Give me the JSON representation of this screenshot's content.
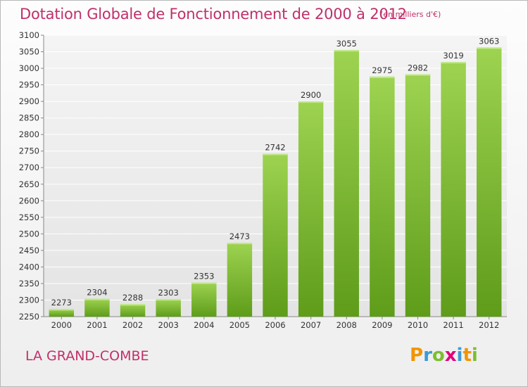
{
  "chart_data": {
    "type": "bar",
    "title": "Dotation Globale de Fonctionnement de 2000 à 2012",
    "subtitle": "(en milliers d'€)",
    "categories": [
      "2000",
      "2001",
      "2002",
      "2003",
      "2004",
      "2005",
      "2006",
      "2007",
      "2008",
      "2009",
      "2010",
      "2011",
      "2012"
    ],
    "values": [
      2273,
      2304,
      2288,
      2303,
      2353,
      2473,
      2742,
      2900,
      3055,
      2975,
      2982,
      3019,
      3063
    ],
    "ylim": [
      2250,
      3100
    ],
    "yticks": [
      2250,
      2300,
      2350,
      2400,
      2450,
      2500,
      2550,
      2600,
      2650,
      2700,
      2750,
      2800,
      2850,
      2900,
      2950,
      3000,
      3050,
      3100
    ],
    "grid": true,
    "bar_color": "#7cbf2e"
  },
  "footer": {
    "commune": "LA GRAND-COMBE",
    "logo_text": "Proxiti",
    "logo_colors": [
      "#f29400",
      "#3a9bd5",
      "#7cbf2e",
      "#e2007a",
      "#3a9bd5",
      "#f29400",
      "#7cbf2e"
    ]
  }
}
